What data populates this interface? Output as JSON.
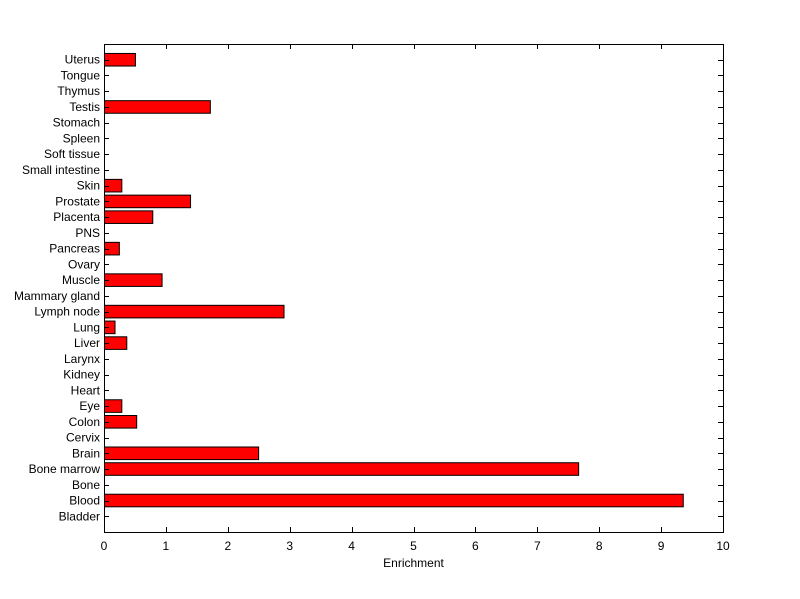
{
  "chart_data": {
    "type": "bar",
    "orientation": "horizontal",
    "title": "",
    "xlabel": "Enrichment",
    "ylabel": "",
    "xlim": [
      0,
      10
    ],
    "xticks": [
      0,
      1,
      2,
      3,
      4,
      5,
      6,
      7,
      8,
      9,
      10
    ],
    "grid": false,
    "bar_color": "#ff0000",
    "bar_edge_color": "#000000",
    "categories": [
      "Bladder",
      "Blood",
      "Bone",
      "Bone marrow",
      "Brain",
      "Cervix",
      "Colon",
      "Eye",
      "Heart",
      "Kidney",
      "Larynx",
      "Liver",
      "Lung",
      "Lymph node",
      "Mammary gland",
      "Muscle",
      "Ovary",
      "Pancreas",
      "PNS",
      "Placenta",
      "Prostate",
      "Skin",
      "Small intestine",
      "Soft tissue",
      "Spleen",
      "Stomach",
      "Testis",
      "Thymus",
      "Tongue",
      "Uterus"
    ],
    "values": [
      0,
      9.35,
      0,
      7.66,
      2.49,
      0,
      0.52,
      0.28,
      0,
      0,
      0,
      0.36,
      0.17,
      2.9,
      0,
      0.93,
      0,
      0.24,
      0,
      0.78,
      1.39,
      0.28,
      0,
      0,
      0,
      0,
      1.71,
      0,
      0,
      0.5
    ]
  }
}
